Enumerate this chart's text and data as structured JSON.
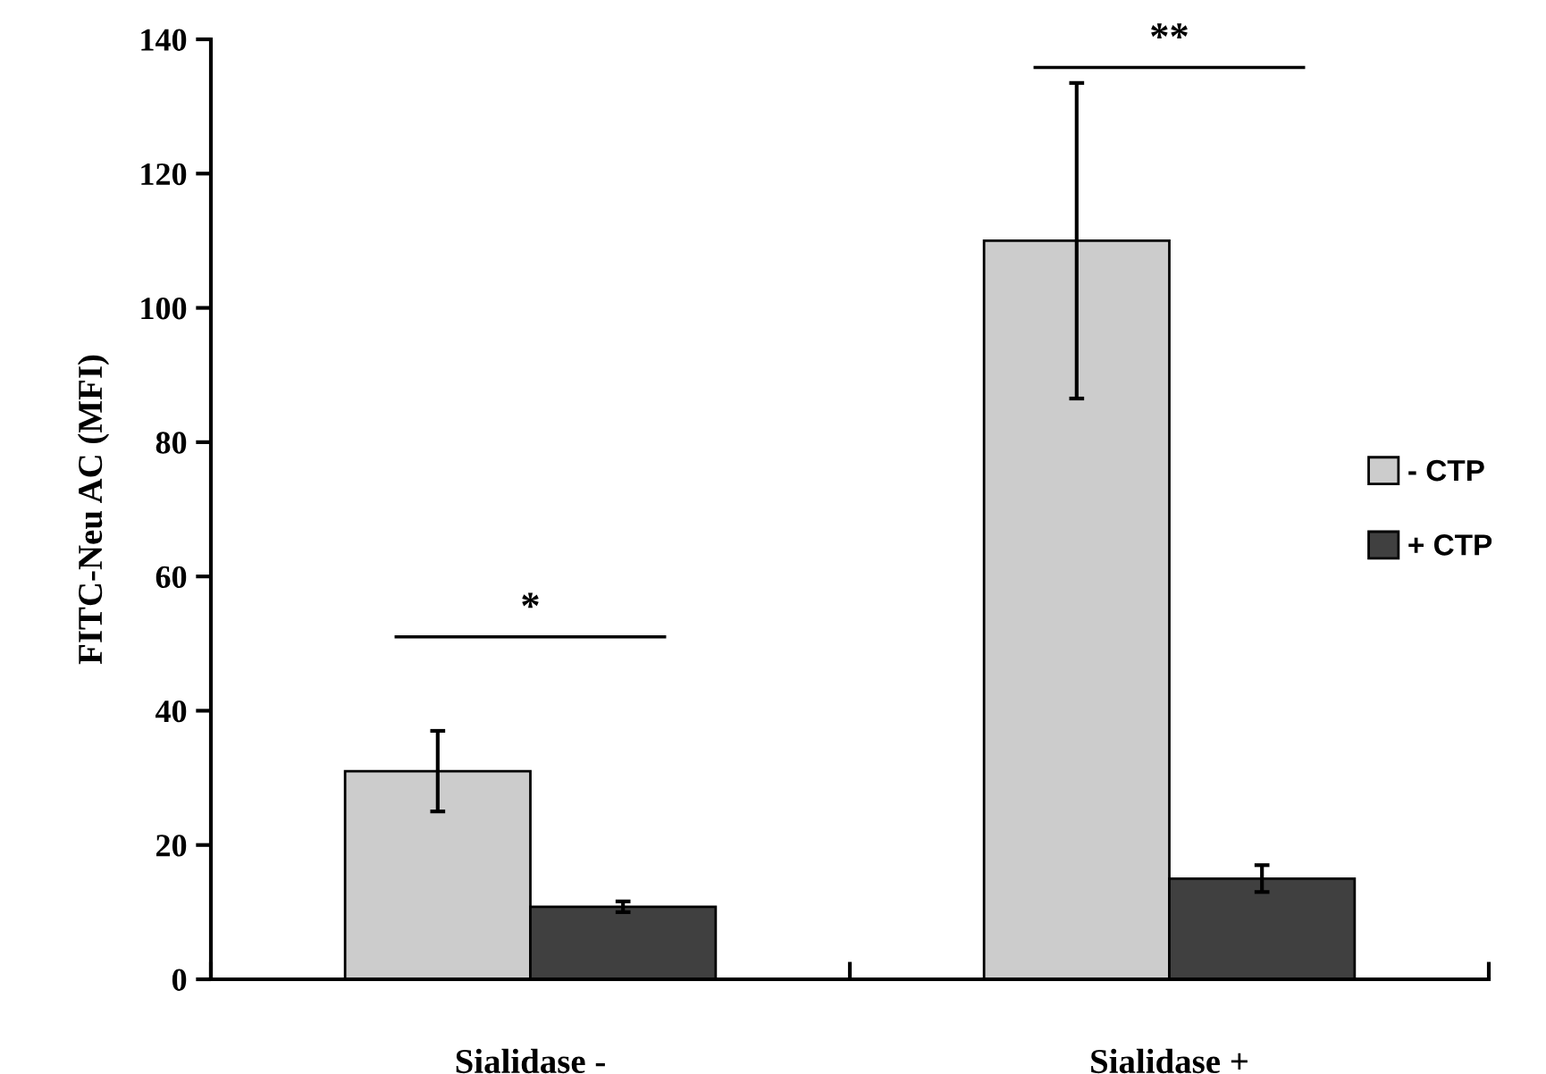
{
  "chart_data": {
    "type": "bar",
    "ylabel": "FITC-Neu AC (MFI)",
    "categories": [
      "Sialidase -",
      "Sialidase +"
    ],
    "series": [
      {
        "name": "- CTP",
        "color": "#cccccc",
        "values": [
          31,
          110
        ],
        "errors": [
          6,
          23.5
        ]
      },
      {
        "name": "+ CTP",
        "color": "#404040",
        "values": [
          10.8,
          15
        ],
        "errors": [
          0.8,
          2
        ]
      }
    ],
    "ylim": [
      0,
      140
    ],
    "yticks": [
      0,
      20,
      40,
      60,
      80,
      100,
      120,
      140
    ],
    "annotations": [
      "*",
      "**"
    ],
    "legend": "right",
    "grid": false
  }
}
